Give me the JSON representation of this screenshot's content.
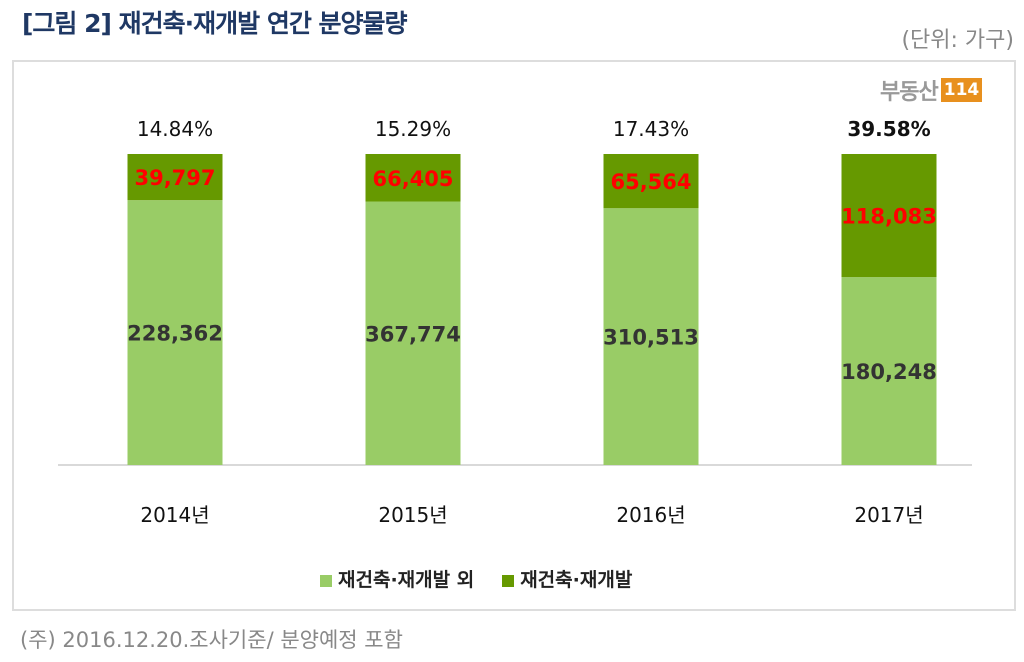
{
  "title": "[그림 2] 재건축·재개발 연간 분양물량",
  "unit": "(단위: 가구)",
  "logo": {
    "text": "부동산",
    "num": "114"
  },
  "note": "(주) 2016.12.20.조사기준/ 분양예정 포함",
  "colors": {
    "other": "#99cc66",
    "redev": "#669900",
    "value_redev": "#ff0000",
    "value_other": "#333333"
  },
  "chart_data": {
    "type": "bar",
    "stacked": "100%",
    "categories": [
      "2014년",
      "2015년",
      "2016년",
      "2017년"
    ],
    "series": [
      {
        "name": "재건축·재개발 외",
        "values": [
          228362,
          367774,
          310513,
          180248
        ],
        "labels": [
          "228,362",
          "367,774",
          "310,513",
          "180,248"
        ]
      },
      {
        "name": "재건축·재개발",
        "values": [
          39797,
          66405,
          65564,
          118083
        ],
        "labels": [
          "39,797",
          "66,405",
          "65,564",
          "118,083"
        ]
      }
    ],
    "share_labels": [
      "14.84%",
      "15.29%",
      "17.43%",
      "39.58%"
    ],
    "legend": "bottom",
    "grid": false
  }
}
